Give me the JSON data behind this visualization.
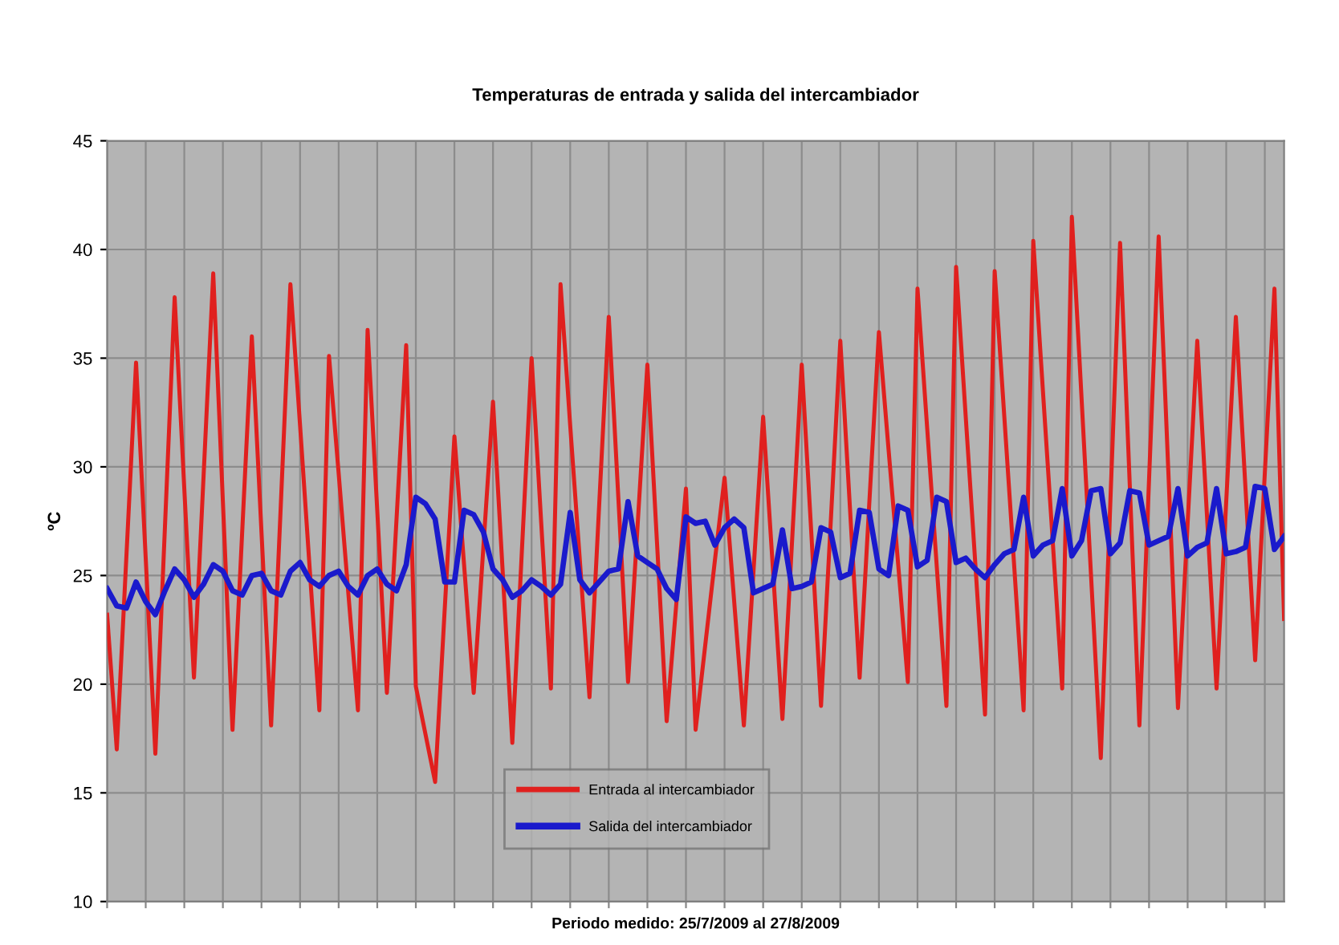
{
  "chart_data": {
    "type": "line",
    "title": "Temperaturas de entrada y salida del intercambiador",
    "xlabel": "Periodo medido: 25/7/2009 al 27/8/2009",
    "ylabel": "ºC",
    "categories": [
      null,
      null,
      null,
      null,
      null,
      null,
      null,
      null,
      null,
      null,
      null,
      null,
      null,
      null,
      null,
      null,
      null,
      null,
      null,
      null,
      null,
      null,
      null,
      null,
      null,
      null,
      null,
      null,
      null,
      null,
      null,
      null,
      null,
      null,
      null,
      null,
      null,
      null,
      null,
      null,
      null,
      null,
      null,
      null,
      null,
      null,
      null,
      null,
      null,
      null,
      null,
      null,
      null,
      null,
      null,
      null,
      null,
      null,
      null,
      null,
      null,
      null,
      null,
      null,
      null,
      null,
      null,
      null,
      null,
      null,
      null,
      null,
      null,
      null,
      null,
      null,
      null,
      null,
      null,
      null,
      null,
      null,
      null,
      null,
      null,
      null,
      null,
      null,
      null,
      null,
      null,
      null,
      null,
      null,
      null,
      null,
      null,
      null,
      null,
      null,
      null,
      null,
      null,
      null,
      null,
      null,
      null,
      null,
      null,
      null,
      null,
      null,
      null,
      null,
      null,
      null,
      null,
      null,
      null,
      null,
      null,
      null,
      null
    ],
    "series": [
      {
        "name": "Entrada al intercambiador",
        "color": "#e0201e",
        "values": [
          23.2,
          17.0,
          25.9,
          34.8,
          25.8,
          16.8,
          27.3,
          37.8,
          29.0,
          20.3,
          29.6,
          38.9,
          28.4,
          17.9,
          27.0,
          36.0,
          27.0,
          18.1,
          28.2,
          38.4,
          31.9,
          25.3,
          18.8,
          35.1,
          29.7,
          24.2,
          18.8,
          36.3,
          28.0,
          19.6,
          27.6,
          35.6,
          19.9,
          17.7,
          15.5,
          23.5,
          31.4,
          25.5,
          19.6,
          26.3,
          33.0,
          25.2,
          17.3,
          26.2,
          35.0,
          27.4,
          19.8,
          38.4,
          31.9,
          25.7,
          19.4,
          28.2,
          36.9,
          28.5,
          20.1,
          27.4,
          34.7,
          26.5,
          18.3,
          23.7,
          29.0,
          17.9,
          21.8,
          25.7,
          29.5,
          23.8,
          18.1,
          25.2,
          32.3,
          25.4,
          18.4,
          26.6,
          34.7,
          26.9,
          19.0,
          27.4,
          35.8,
          28.1,
          20.3,
          28.3,
          36.2,
          30.8,
          25.5,
          20.1,
          38.2,
          31.8,
          25.4,
          19.0,
          39.2,
          32.3,
          25.5,
          18.6,
          39.0,
          32.3,
          25.6,
          18.8,
          40.4,
          33.5,
          26.7,
          19.8,
          41.5,
          33.2,
          24.9,
          16.6,
          28.5,
          40.3,
          29.2,
          18.1,
          29.4,
          40.6,
          29.8,
          18.9,
          27.4,
          35.8,
          27.8,
          19.8,
          28.4,
          36.9,
          29.0,
          21.1,
          29.7,
          38.2,
          23.0
        ]
      },
      {
        "name": "Salida del intercambiador",
        "color": "#1a1acc",
        "values": [
          24.4,
          23.6,
          23.5,
          24.7,
          23.8,
          23.2,
          24.3,
          25.3,
          24.8,
          24.0,
          24.6,
          25.5,
          25.2,
          24.3,
          24.1,
          25.0,
          25.1,
          24.3,
          24.1,
          25.2,
          25.6,
          24.8,
          24.5,
          25.0,
          25.2,
          24.5,
          24.1,
          25.0,
          25.3,
          24.6,
          24.3,
          25.5,
          28.6,
          28.3,
          27.6,
          24.7,
          24.7,
          28.0,
          27.8,
          27.0,
          25.3,
          24.8,
          24.0,
          24.3,
          24.8,
          24.5,
          24.1,
          24.6,
          27.9,
          24.8,
          24.2,
          24.7,
          25.2,
          25.3,
          28.4,
          25.9,
          25.6,
          25.3,
          24.4,
          23.9,
          27.7,
          27.4,
          27.5,
          26.4,
          27.2,
          27.6,
          27.2,
          24.2,
          24.4,
          24.6,
          27.1,
          24.4,
          24.5,
          24.7,
          27.2,
          27.0,
          24.9,
          25.1,
          28.0,
          27.9,
          25.3,
          25.0,
          28.2,
          28.0,
          25.4,
          25.7,
          28.6,
          28.4,
          25.6,
          25.8,
          25.3,
          24.9,
          25.5,
          26.0,
          26.2,
          28.6,
          25.9,
          26.4,
          26.6,
          29.0,
          25.9,
          26.6,
          28.9,
          29.0,
          26.0,
          26.5,
          28.9,
          28.8,
          26.4,
          26.6,
          26.8,
          29.0,
          25.9,
          26.3,
          26.5,
          29.0,
          26.0,
          26.1,
          26.3,
          29.1,
          29.0,
          26.2,
          26.8
        ]
      }
    ],
    "ylim": [
      10,
      45
    ],
    "yticks": [
      10,
      15,
      20,
      25,
      30,
      35,
      40,
      45
    ],
    "grid": true,
    "legend": "bottom",
    "marker": "none",
    "line_style": "solid",
    "tick_labels": "y"
  }
}
